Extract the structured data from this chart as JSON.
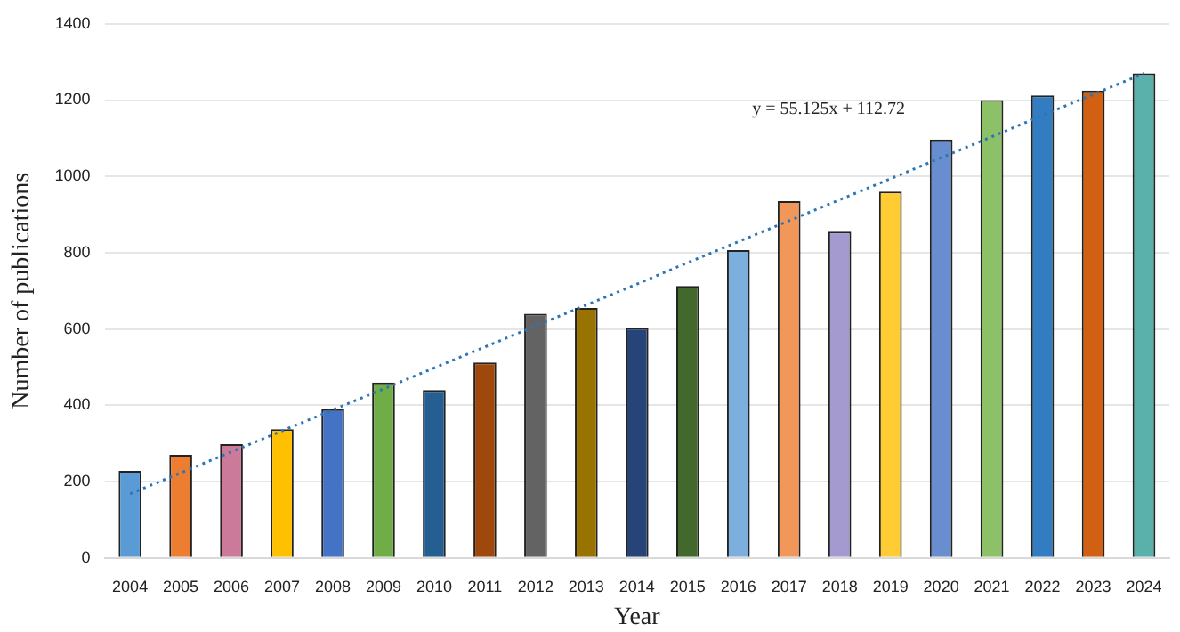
{
  "chart_data": {
    "type": "bar",
    "xlabel": "Year",
    "ylabel": "Number of publications",
    "categories": [
      "2004",
      "2005",
      "2006",
      "2007",
      "2008",
      "2009",
      "2010",
      "2011",
      "2012",
      "2013",
      "2014",
      "2015",
      "2016",
      "2017",
      "2018",
      "2019",
      "2020",
      "2021",
      "2022",
      "2023",
      "2024"
    ],
    "series": [
      {
        "colors": [
          "#5b9bd5",
          "#ed7d31",
          "#cc7a9a",
          "#ffc000",
          "#4472c4",
          "#70ad47",
          "#255e91",
          "#9e480e",
          "#636363",
          "#997300",
          "#264478",
          "#43682b",
          "#7cafdd",
          "#f1975a",
          "#a59ad0",
          "#ffcd33",
          "#698ed0",
          "#8cc168",
          "#327dc2",
          "#d26012",
          "#5ab0aa"
        ],
        "values": [
          228,
          270,
          298,
          337,
          390,
          460,
          440,
          512,
          640,
          655,
          603,
          713,
          807,
          935,
          855,
          960,
          1097,
          1200,
          1212,
          1225,
          1270
        ]
      },
      {
        "type": "line",
        "color": "#2e75b6",
        "line_style": "dotted",
        "marker": "none",
        "values": [
          168,
          223,
          278,
          333,
          388,
          443,
          498,
          553,
          608,
          663,
          718,
          774,
          829,
          884,
          939,
          994,
          1049,
          1104,
          1160,
          1215,
          1270
        ]
      }
    ],
    "ylim": [
      0,
      1400
    ],
    "yticks": [
      0,
      200,
      400,
      600,
      800,
      1000,
      1200,
      1400
    ],
    "grid": "y",
    "legend": false,
    "annotations": [
      "y = 55.125x + 112.72"
    ]
  }
}
